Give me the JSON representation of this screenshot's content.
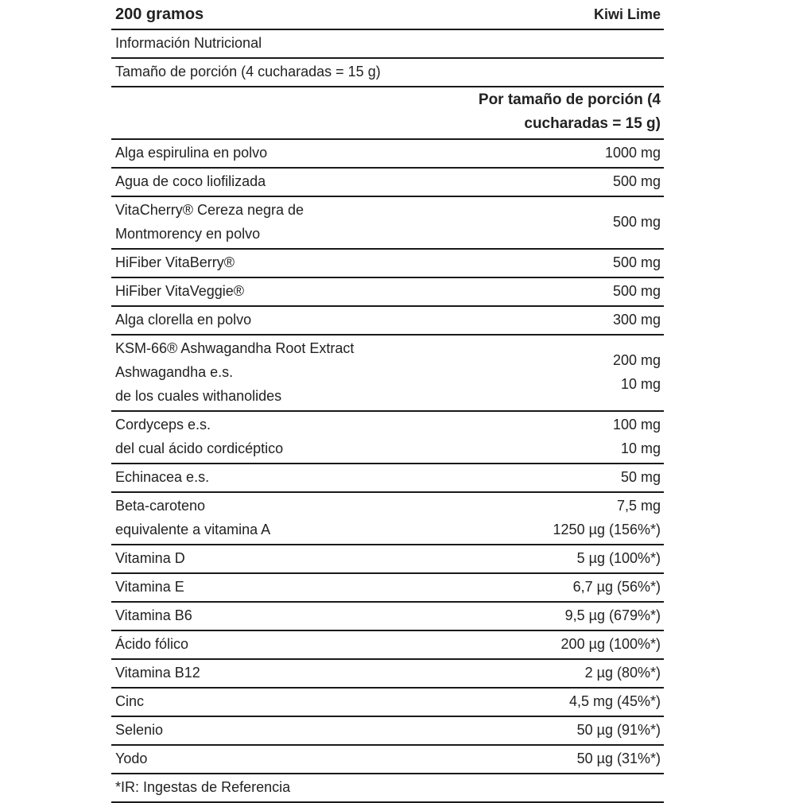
{
  "header": {
    "size": "200 gramos",
    "flavor": "Kiwi Lime"
  },
  "info_title": "Información Nutricional",
  "serving": "Tamaño de porción (4 cucharadas = 15 g)",
  "column_header": [
    "Por tamaño de porción (4",
    "cucharadas = 15 g)"
  ],
  "rows": [
    {
      "left": [
        "Alga espirulina en polvo"
      ],
      "right": [
        "1000 mg"
      ]
    },
    {
      "left": [
        "Agua de coco liofilizada"
      ],
      "right": [
        "500 mg"
      ]
    },
    {
      "left": [
        "VitaCherry® Cereza negra de",
        "Montmorency en polvo"
      ],
      "right": [
        "500 mg"
      ]
    },
    {
      "left": [
        "HiFiber VitaBerry®"
      ],
      "right": [
        "500 mg"
      ]
    },
    {
      "left": [
        "HiFiber VitaVeggie®"
      ],
      "right": [
        "500 mg"
      ]
    },
    {
      "left": [
        "Alga clorella en polvo"
      ],
      "right": [
        "300 mg"
      ]
    },
    {
      "left": [
        "KSM-66® Ashwagandha Root Extract",
        "Ashwagandha e.s.",
        "de los cuales withanolides"
      ],
      "right": [
        "200 mg",
        "10 mg"
      ]
    },
    {
      "left": [
        "Cordyceps e.s.",
        "del cual ácido cordicéptico"
      ],
      "right": [
        "100 mg",
        "10 mg"
      ]
    },
    {
      "left": [
        "Echinacea e.s."
      ],
      "right": [
        "50 mg"
      ]
    },
    {
      "left": [
        "Beta-caroteno",
        "equivalente a vitamina A"
      ],
      "right": [
        "7,5 mg",
        "1250 µg (156%*)"
      ]
    },
    {
      "left": [
        "Vitamina D"
      ],
      "right": [
        "5 µg (100%*)"
      ]
    },
    {
      "left": [
        "Vitamina E"
      ],
      "right": [
        "6,7 µg (56%*)"
      ]
    },
    {
      "left": [
        "Vitamina B6"
      ],
      "right": [
        "9,5 µg (679%*)"
      ]
    },
    {
      "left": [
        "Ácido fólico"
      ],
      "right": [
        "200 µg (100%*)"
      ]
    },
    {
      "left": [
        "Vitamina B12"
      ],
      "right": [
        "2 µg (80%*)"
      ]
    },
    {
      "left": [
        "Cinc"
      ],
      "right": [
        "4,5 mg (45%*)"
      ]
    },
    {
      "left": [
        "Selenio"
      ],
      "right": [
        "50 µg (91%*)"
      ]
    },
    {
      "left": [
        "Yodo"
      ],
      "right": [
        "50 µg (31%*)"
      ]
    }
  ],
  "footnote": "*IR: Ingestas de Referencia"
}
